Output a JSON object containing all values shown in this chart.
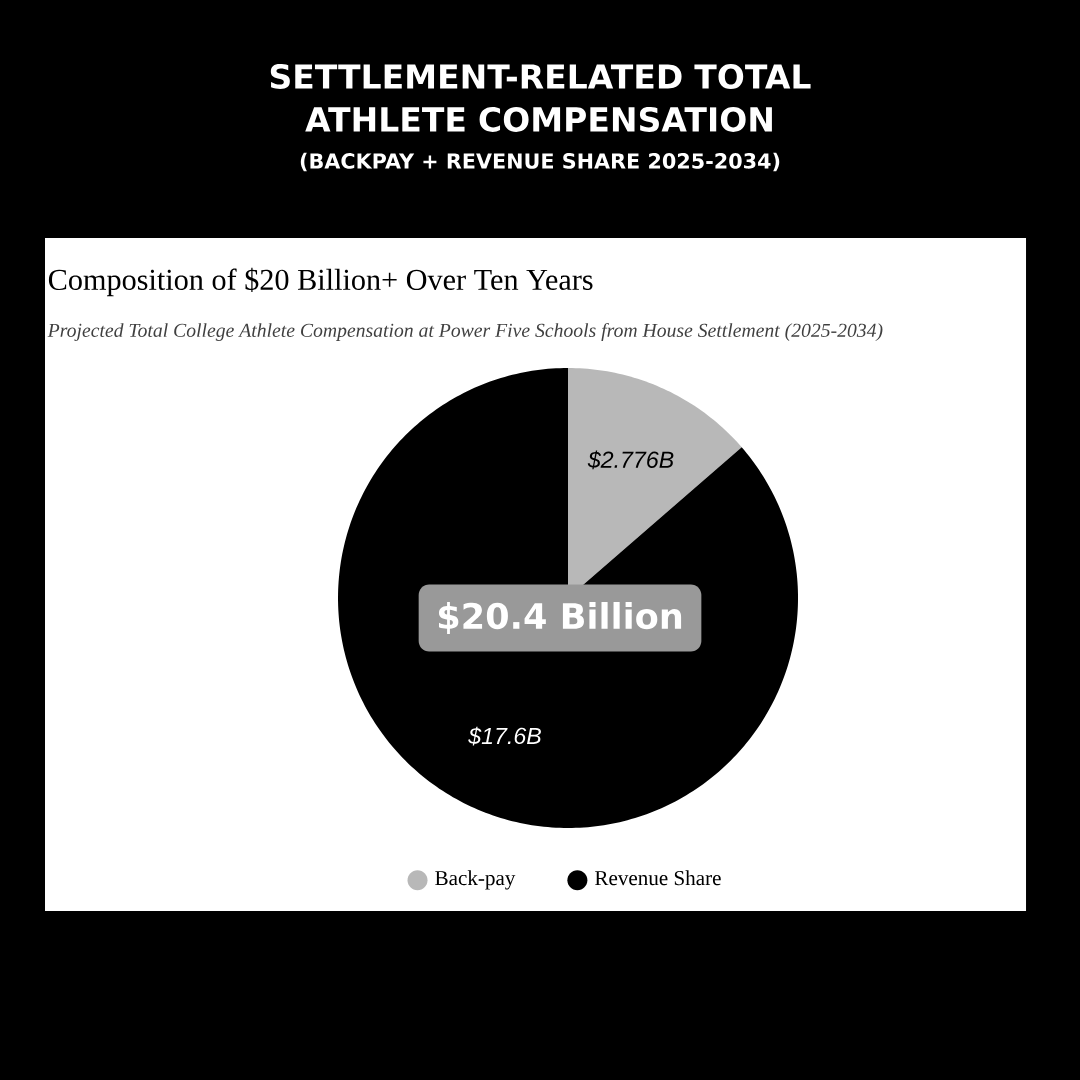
{
  "chart_data": {
    "type": "pie",
    "title": "SETTLEMENT-RELATED TOTAL ATHLETE COMPENSATION",
    "subtitle": "(BACKPAY + REVENUE SHARE 2025-2034)",
    "annotations": [
      "Composition of $20 Billion+ Over Ten Years",
      "Projected Total College Athlete Compensation at Power Five Schools from House Settlement (2025-2034)",
      "$20.4 Billion"
    ],
    "categories": [
      "Back-pay",
      "Revenue Share"
    ],
    "values": [
      2.776,
      17.6
    ],
    "colors": [
      "#b8b8b8",
      "#000000"
    ],
    "value_labels": [
      "$2.776B",
      "$17.6B"
    ],
    "legend": "bottom"
  }
}
